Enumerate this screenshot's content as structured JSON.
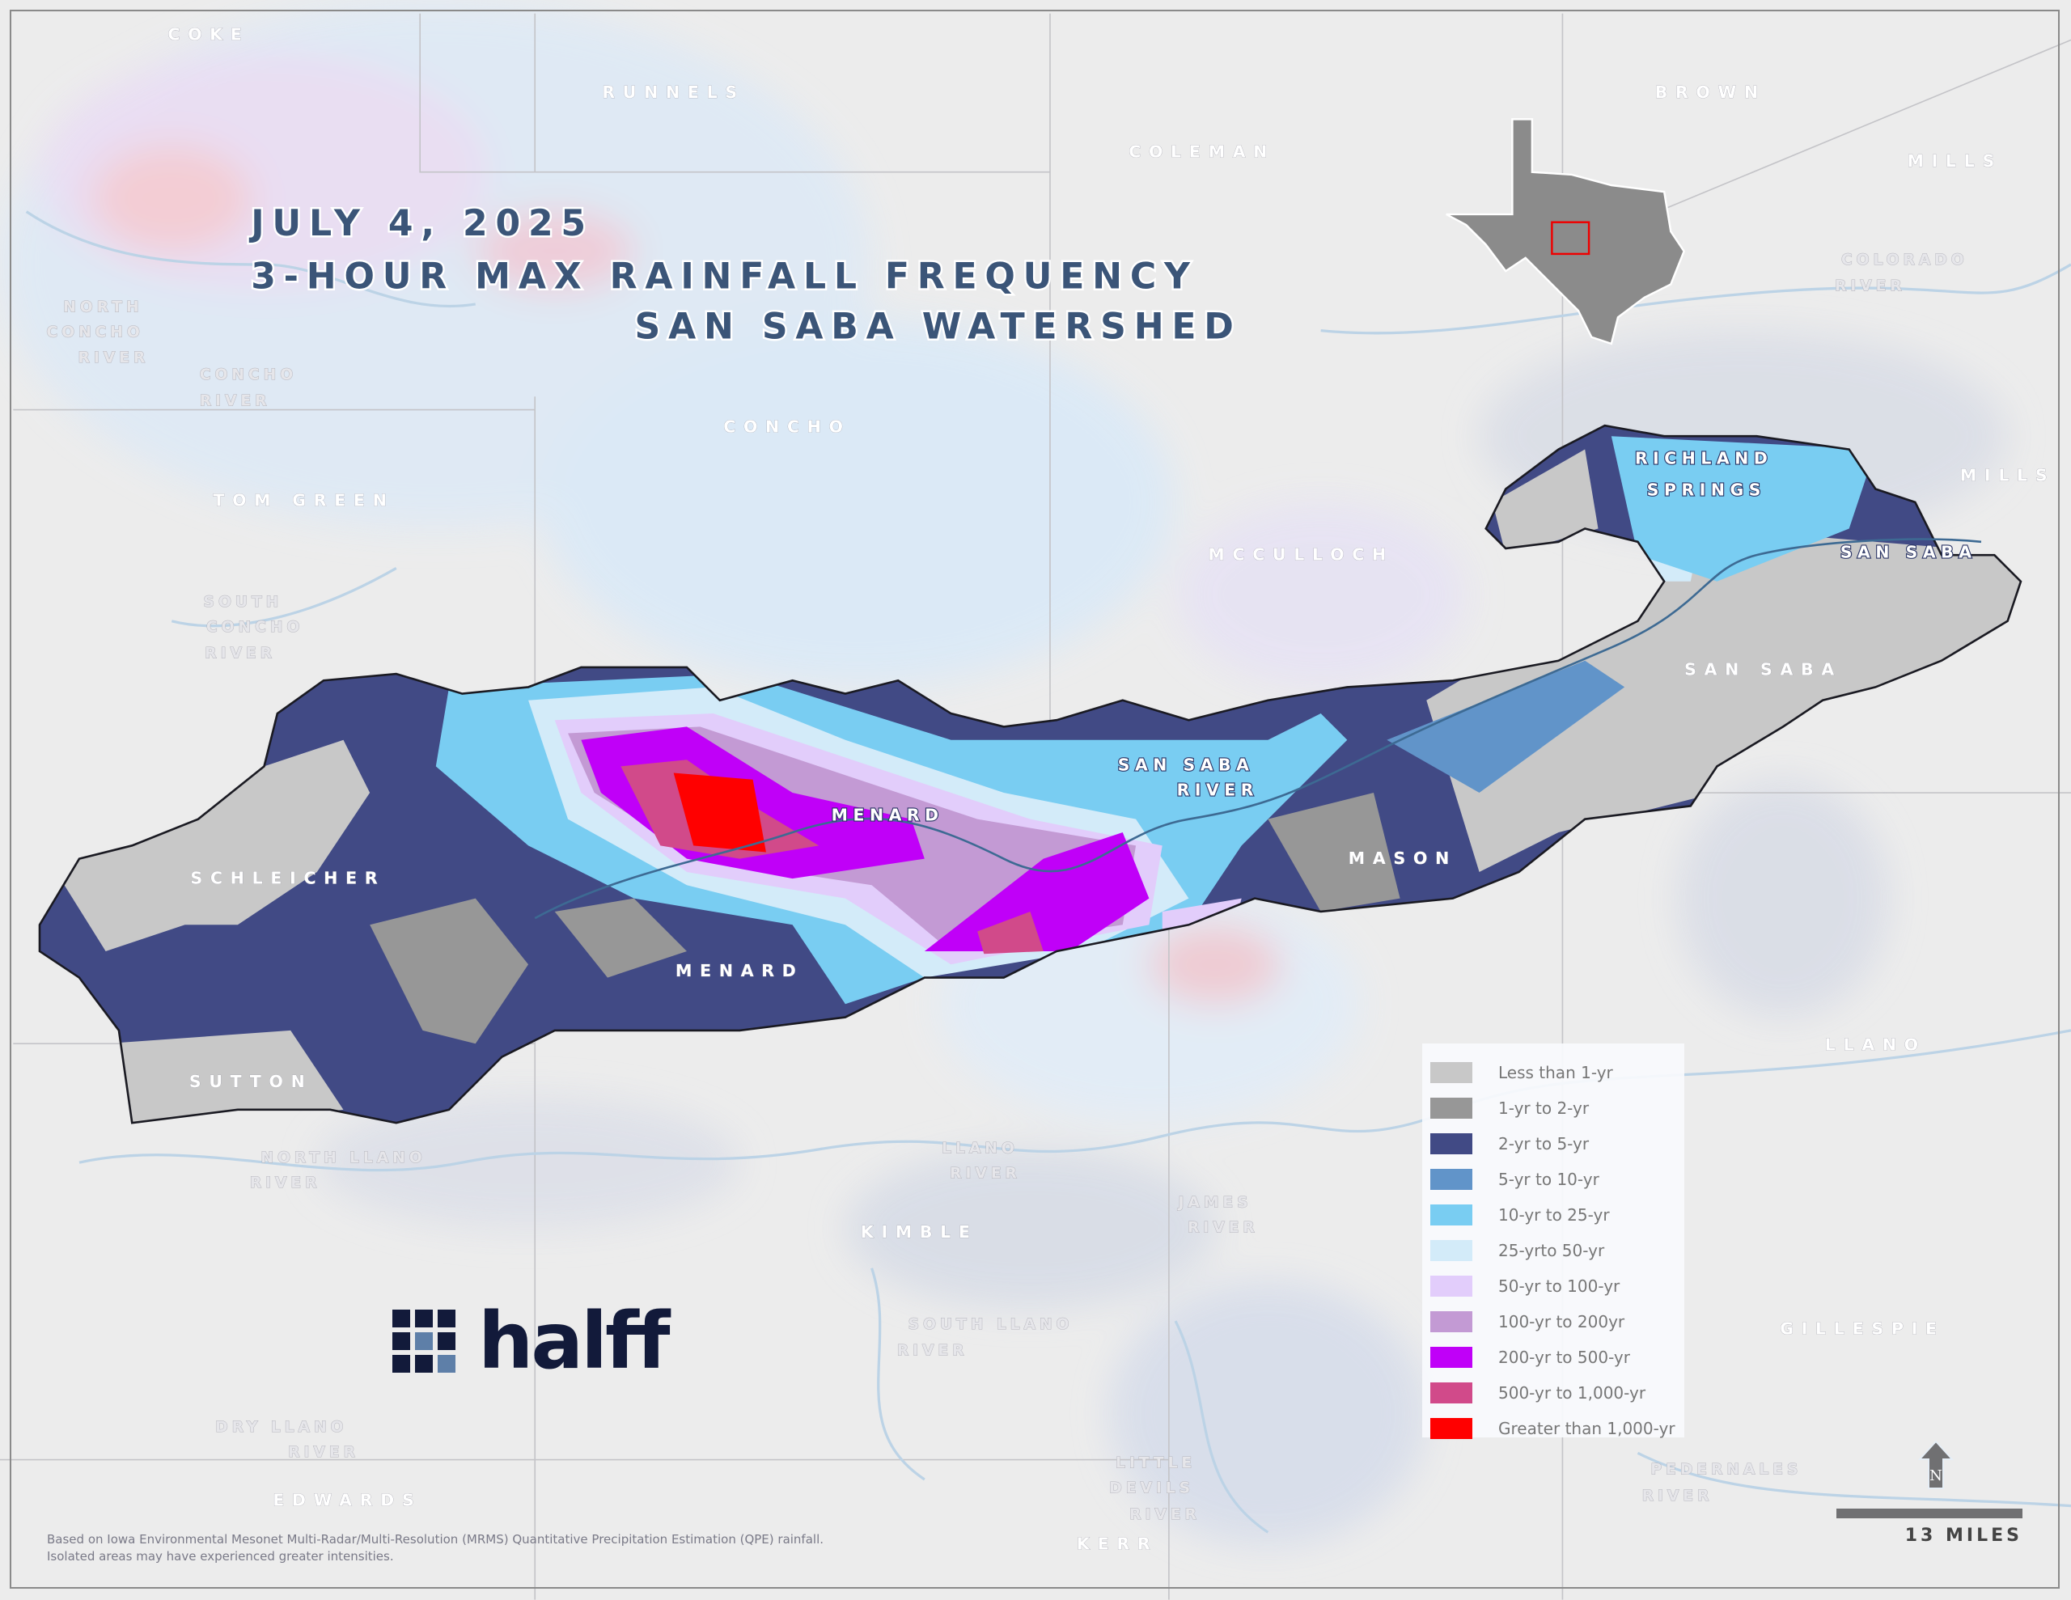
{
  "title": {
    "line1": "JULY 4, 2025",
    "line2": "3-HOUR MAX RAINFALL FREQUENCY",
    "line3": "SAN SABA WATERSHED"
  },
  "counties": [
    "COKE",
    "RUNNELS",
    "COLEMAN",
    "BROWN",
    "MILLS",
    "MILLS",
    "CONCHO",
    "TOM GREEN",
    "MCCULLOCH",
    "SAN SABA",
    "SCHLEICHER",
    "MENARD",
    "MASON",
    "SUTTON",
    "LLANO",
    "KIMBLE",
    "GILLESPIE",
    "EDWARDS",
    "KERR"
  ],
  "rivers": {
    "north_concho": [
      "NORTH",
      "CONCHO",
      "RIVER"
    ],
    "concho": [
      "CONCHO",
      "RIVER"
    ],
    "south_concho": [
      "SOUTH",
      "CONCHO",
      "RIVER"
    ],
    "colorado": [
      "COLORADO",
      "RIVER"
    ],
    "north_llano": [
      "NORTH LLANO",
      "RIVER"
    ],
    "llano": [
      "LLANO",
      "RIVER"
    ],
    "james": [
      "JAMES",
      "RIVER"
    ],
    "south_llano": [
      "SOUTH LLANO",
      "RIVER"
    ],
    "dry_llano": [
      "DRY LLANO",
      "RIVER"
    ],
    "little_devils": [
      "LITTLE",
      "DEVILS",
      "RIVER"
    ],
    "pedernales": [
      "PEDERNALES",
      "RIVER"
    ]
  },
  "watershed_labels": {
    "richland_springs": [
      "RICHLAND",
      "SPRINGS"
    ],
    "san_saba_river": [
      "SAN SABA",
      "RIVER"
    ],
    "san_saba_town": "SAN SABA",
    "menard_town": "MENARD"
  },
  "legend": [
    {
      "label": "Less than 1-yr",
      "color": "#c8c8c8"
    },
    {
      "label": "1-yr to 2-yr",
      "color": "#979797"
    },
    {
      "label": "2-yr to 5-yr",
      "color": "#414a85"
    },
    {
      "label": "5-yr to 10-yr",
      "color": "#6194c9"
    },
    {
      "label": "10-yr to 25-yr",
      "color": "#79cdf2"
    },
    {
      "label": "25-yrto 50-yr",
      "color": "#d3ebf9"
    },
    {
      "label": "50-yr to 100-yr",
      "color": "#e2cdfb"
    },
    {
      "label": "100-yr to 200yr",
      "color": "#c39ad4"
    },
    {
      "label": "200-yr to 500-yr",
      "color": "#c000f8"
    },
    {
      "label": "500-yr to 1,000-yr",
      "color": "#d14a8a"
    },
    {
      "label": "Greater than 1,000-yr",
      "color": "#ff0000"
    }
  ],
  "logo": {
    "text": "halff"
  },
  "footnote": {
    "line1": "Based on Iowa Environmental Mesonet Multi-Radar/Multi-Resolution (MRMS) Quantitative Precipitation Estimation (QPE) rainfall.",
    "line2": "Isolated areas may have experienced greater intensities."
  },
  "scale": {
    "label": "13 MILES",
    "north": "N"
  }
}
